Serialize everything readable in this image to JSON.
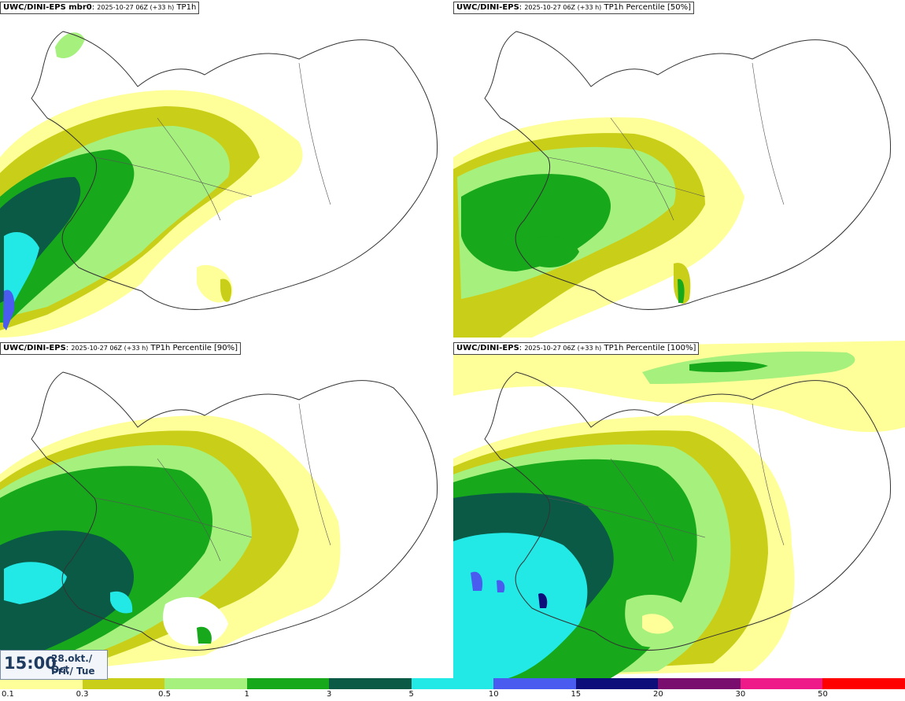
{
  "panels": [
    {
      "model": "UWC/DINI-EPS mbr0",
      "run": "2025-10-27 06Z (+33 h)",
      "field": "TP1h"
    },
    {
      "model": "UWC/DINI-EPS",
      "run": "2025-10-27 06Z (+33 h)",
      "field": "TP1h Percentile [50%]"
    },
    {
      "model": "UWC/DINI-EPS",
      "run": "2025-10-27 06Z (+33 h)",
      "field": "TP1h Percentile [90%]"
    },
    {
      "model": "UWC/DINI-EPS",
      "run": "2025-10-27 06Z (+33 h)",
      "field": "TP1h Percentile [100%]"
    }
  ],
  "time_box": {
    "time": "15:00",
    "date_line1": "28.okt./ Oct",
    "date_line2": "Þri./ Tue"
  },
  "legend": {
    "labels": [
      "0.1",
      "0.3",
      "0.5",
      "1",
      "3",
      "5",
      "10",
      "15",
      "20",
      "30",
      "50"
    ],
    "colors": [
      "#ffff99",
      "#c9cf19",
      "#a6f07e",
      "#17a81b",
      "#0a5a46",
      "#22e8e6",
      "#4a5cf0",
      "#0e0e7a",
      "#7a0e6e",
      "#ef1a8a",
      "#ff0000"
    ]
  },
  "map": {
    "land_outline_color": "#333333",
    "precip_colors": {
      "light": "#ffff99",
      "olive": "#c9cf19",
      "lightgreen": "#a6f07e",
      "green": "#17a81b",
      "darkgreen": "#0a5a46",
      "cyan": "#22e8e6",
      "blue": "#4a5cf0",
      "navy": "#0e0e7a"
    }
  }
}
